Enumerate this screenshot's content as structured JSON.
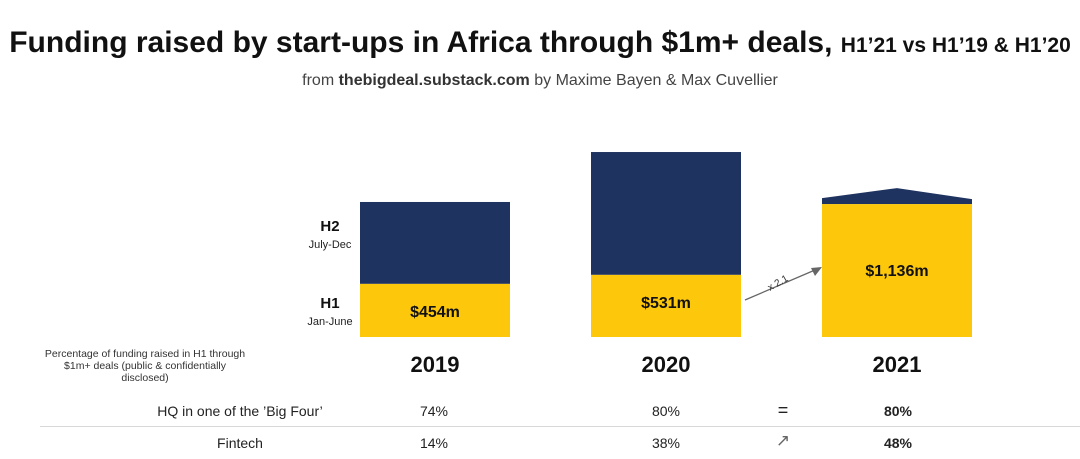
{
  "title_main": "Funding raised by start-ups in Africa through $1m+ deals,",
  "title_suffix": "H1’21 vs H1’19 & H1’20",
  "subtitle_prefix": "from",
  "subtitle_source": "thebigdeal.substack.com",
  "subtitle_suffix": "by Maxime Bayen & Max Cuvellier",
  "colors": {
    "h1": "#FDC70C",
    "h2": "#1F3360",
    "arrow": "#666666"
  },
  "chart_data": {
    "type": "bar",
    "stacked": true,
    "categories": [
      "2019",
      "2020",
      "2021"
    ],
    "series": [
      {
        "name": "H1",
        "values": [
          454,
          531,
          1136
        ],
        "labels": [
          "$454m",
          "$531m",
          "$1,136m"
        ]
      },
      {
        "name": "H2",
        "values": [
          700,
          1050,
          null
        ]
      }
    ],
    "legend": [
      {
        "name": "H1",
        "sub": "Jan-June"
      },
      {
        "name": "H2",
        "sub": "July-Dec"
      }
    ],
    "annotation": "x 2.1"
  },
  "pct_note": "Percentage of funding raised in H1 through $1m+ deals (public & confidentially disclosed)",
  "rows": [
    {
      "label": "HQ in one of the ’Big Four’",
      "v2019": "74%",
      "v2020": "80%",
      "symbol": "=",
      "v2021": "80%"
    },
    {
      "label": "Fintech",
      "v2019": "14%",
      "v2020": "38%",
      "symbol": "↗",
      "v2021": "48%"
    }
  ]
}
